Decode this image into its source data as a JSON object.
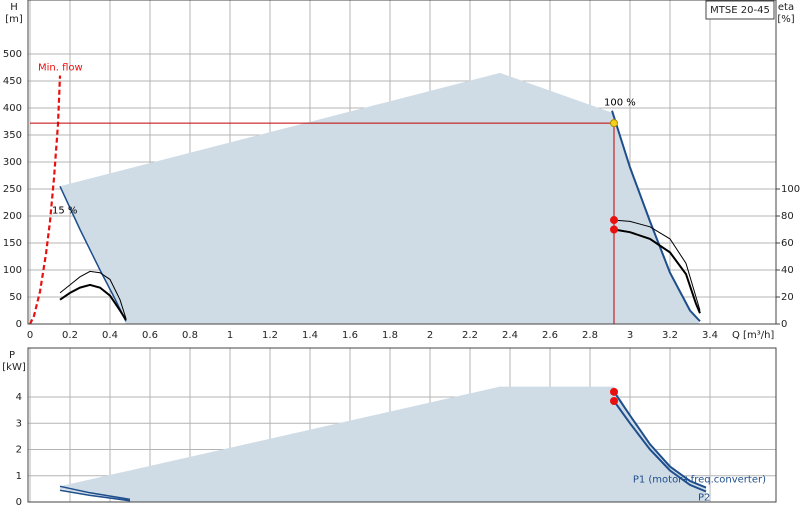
{
  "chart_data": [
    {
      "type": "line",
      "label_box": "MTSE 20-45",
      "y_label": "H",
      "y_unit": "[m]",
      "y2_label": "eta",
      "y2_unit": "[%]",
      "x_label": "Q [m³/h]",
      "xlim": [
        0,
        3.73
      ],
      "xticks": [
        0,
        0.2,
        0.4,
        0.6,
        0.8,
        1.0,
        1.2,
        1.4,
        1.6,
        1.8,
        2.0,
        2.2,
        2.4,
        2.6,
        2.8,
        3.0,
        3.2,
        3.4
      ],
      "ylim": [
        0,
        600
      ],
      "yticks": [
        0,
        50,
        100,
        150,
        200,
        250,
        300,
        350,
        400,
        450,
        500
      ],
      "y2lim": [
        0,
        240
      ],
      "y2ticks": [
        0,
        20,
        40,
        60,
        80,
        100
      ],
      "grid": true,
      "series": [
        {
          "kind": "area",
          "color": "#cfdce6",
          "x": [
            0.15,
            2.35,
            2.92,
            3.0,
            3.1,
            3.2,
            3.3,
            3.35,
            0.48,
            0.42,
            0.35,
            0.25
          ],
          "values": [
            255,
            465,
            390,
            290,
            190,
            95,
            25,
            0,
            0,
            50,
            100,
            175
          ]
        },
        {
          "kind": "line",
          "name": "Min. flow",
          "color": "#e8110f",
          "dash": true,
          "width": 2.2,
          "x": [
            0,
            0.02,
            0.05,
            0.08,
            0.1,
            0.12,
            0.14,
            0.15
          ],
          "values": [
            0,
            15,
            60,
            130,
            190,
            270,
            370,
            460
          ]
        },
        {
          "kind": "line",
          "name": "100 %",
          "color": "#1f4e8c",
          "width": 2,
          "x": [
            2.91,
            3.0,
            3.1,
            3.2,
            3.3,
            3.35
          ],
          "values": [
            395,
            290,
            190,
            95,
            25,
            5
          ]
        },
        {
          "kind": "line",
          "name": "15 %",
          "color": "#1f4e8c",
          "width": 1.5,
          "x": [
            0.15,
            0.25,
            0.35,
            0.42,
            0.48
          ],
          "values": [
            255,
            175,
            100,
            50,
            5
          ]
        },
        {
          "kind": "line",
          "color": "#c00000",
          "width": 1,
          "x": [
            0,
            2.92,
            2.92
          ],
          "values": [
            372,
            372,
            0
          ]
        },
        {
          "kind": "line",
          "axis": "y2",
          "color": "#000000",
          "width": 1,
          "x": [
            2.92,
            3.0,
            3.1,
            3.2,
            3.28,
            3.33,
            3.35
          ],
          "values": [
            77,
            76,
            72,
            63,
            45,
            20,
            10
          ]
        },
        {
          "kind": "line",
          "axis": "y2",
          "color": "#000000",
          "width": 2,
          "x": [
            2.92,
            3.0,
            3.1,
            3.2,
            3.28,
            3.33,
            3.35
          ],
          "values": [
            70,
            68,
            63,
            53,
            37,
            15,
            8
          ]
        },
        {
          "kind": "line",
          "axis": "y2",
          "color": "#000000",
          "width": 1,
          "x": [
            0.15,
            0.2,
            0.25,
            0.3,
            0.35,
            0.4,
            0.45,
            0.48
          ],
          "values": [
            23,
            29,
            35,
            39,
            38,
            33,
            18,
            4
          ]
        },
        {
          "kind": "line",
          "axis": "y2",
          "color": "#000000",
          "width": 2,
          "x": [
            0.15,
            0.2,
            0.25,
            0.3,
            0.35,
            0.4,
            0.45,
            0.48
          ],
          "values": [
            18,
            23,
            27,
            29,
            27,
            21,
            10,
            3
          ]
        },
        {
          "kind": "point",
          "color": "#f5d21a",
          "x": [
            2.92
          ],
          "values": [
            372
          ]
        },
        {
          "kind": "point",
          "axis": "y2",
          "color": "#e8110f",
          "x": [
            2.92,
            2.92
          ],
          "values": [
            77,
            70
          ]
        }
      ]
    },
    {
      "type": "line",
      "y_label": "P",
      "y_unit": "[kW]",
      "xlim": [
        0,
        3.73
      ],
      "ylim": [
        0,
        5.87
      ],
      "yticks": [
        0,
        1,
        2,
        3,
        4
      ],
      "grid": true,
      "series": [
        {
          "kind": "area",
          "color": "#cfdce6",
          "x": [
            0.15,
            2.35,
            2.92,
            3.0,
            3.1,
            3.2,
            3.3,
            3.38,
            3.38,
            0.5,
            0.15
          ],
          "values": [
            0.6,
            4.4,
            4.4,
            3.3,
            2.2,
            1.35,
            0.8,
            0.55,
            0,
            0,
            0.5
          ]
        },
        {
          "kind": "line",
          "color": "#1f4e8c",
          "width": 1.5,
          "x": [
            0.15,
            0.3,
            0.5
          ],
          "values": [
            0.6,
            0.35,
            0.1
          ]
        },
        {
          "kind": "line",
          "color": "#1f4e8c",
          "width": 1.5,
          "x": [
            0.15,
            0.3,
            0.5
          ],
          "values": [
            0.45,
            0.25,
            0.05
          ]
        },
        {
          "kind": "line",
          "name": "P1 (motor+freq.converter)",
          "color": "#1f4e8c",
          "width": 2,
          "x": [
            2.92,
            3.0,
            3.1,
            3.2,
            3.3,
            3.38
          ],
          "values": [
            4.2,
            3.3,
            2.2,
            1.35,
            0.8,
            0.55
          ]
        },
        {
          "kind": "line",
          "name": "P2",
          "color": "#1f4e8c",
          "width": 2,
          "x": [
            2.92,
            3.0,
            3.1,
            3.2,
            3.3,
            3.38
          ],
          "values": [
            3.85,
            3.0,
            2.0,
            1.2,
            0.65,
            0.4
          ]
        },
        {
          "kind": "point",
          "color": "#e8110f",
          "x": [
            2.92,
            2.92
          ],
          "values": [
            4.2,
            3.85
          ]
        }
      ]
    }
  ]
}
